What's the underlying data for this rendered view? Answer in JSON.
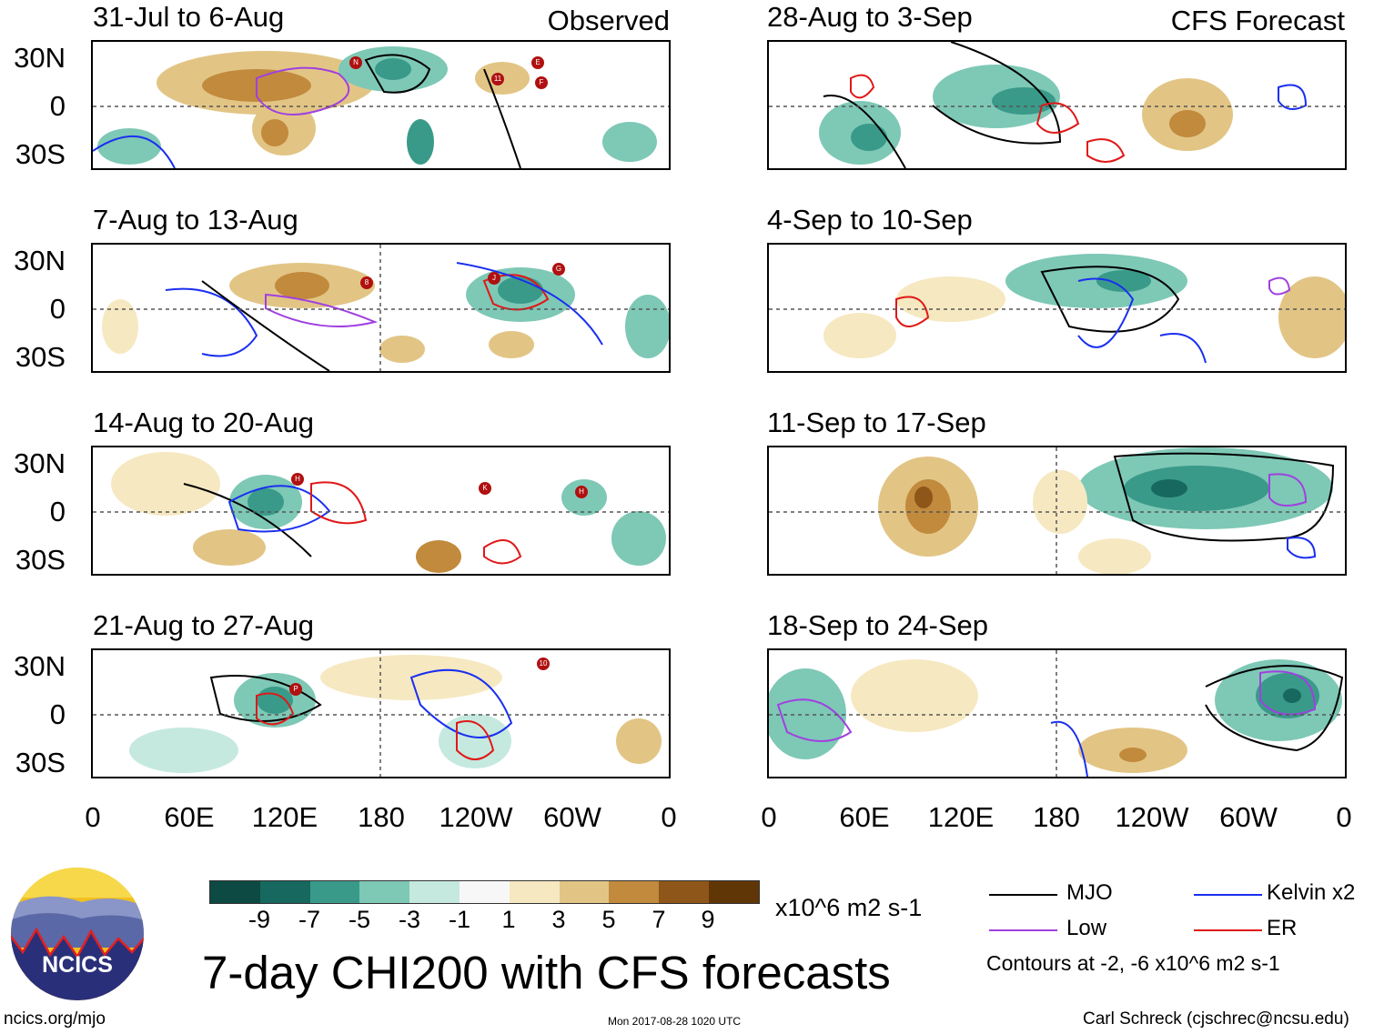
{
  "header": {
    "observed_label": "Observed",
    "forecast_label": "CFS Forecast"
  },
  "panels_left": [
    {
      "period": "31-Jul to 6-Aug"
    },
    {
      "period": "7-Aug to 13-Aug"
    },
    {
      "period": "14-Aug to 20-Aug"
    },
    {
      "period": "21-Aug to 27-Aug"
    }
  ],
  "panels_right": [
    {
      "period": "28-Aug to 3-Sep"
    },
    {
      "period": "4-Sep to 10-Sep"
    },
    {
      "period": "11-Sep to 17-Sep"
    },
    {
      "period": "18-Sep to 24-Sep"
    }
  ],
  "y_axis": {
    "n": "30N",
    "eq": "0",
    "s": "30S"
  },
  "x_axis": [
    "0",
    "60E",
    "120E",
    "180",
    "120W",
    "60W",
    "0"
  ],
  "colorbar": {
    "colors": [
      "#0d4a43",
      "#17685e",
      "#3a9a8a",
      "#7ec8b6",
      "#c5e9df",
      "#f7f7f7",
      "#f6e8c1",
      "#e2c585",
      "#c18a3c",
      "#8e5618",
      "#613607"
    ],
    "ticks": [
      "-9",
      "-7",
      "-5",
      "-3",
      "-1",
      "1",
      "3",
      "5",
      "7",
      "9"
    ],
    "units": "x10^6 m2 s-1"
  },
  "title": "7-day CHI200 with CFS forecasts",
  "legend": {
    "items": [
      {
        "label": "MJO",
        "color": "#000000"
      },
      {
        "label": "Kelvin x2",
        "color": "#1a2ff0"
      },
      {
        "label": "Low",
        "color": "#a040e0"
      },
      {
        "label": "ER",
        "color": "#e01818"
      }
    ],
    "contours_note": "Contours at -2, -6 x10^6 m2 s-1"
  },
  "logo_text": "NCICS",
  "footer": {
    "url": "ncics.org/mjo",
    "timestamp": "Mon 2017-08-28 1020 UTC",
    "author": "Carl Schreck (cjschrec@ncsu.edu)"
  },
  "storm_markers": {
    "p0": [
      "N",
      "E",
      "11",
      "F"
    ],
    "p1": [
      "8",
      "J",
      "G"
    ],
    "p2": [
      "H",
      "K",
      "H"
    ],
    "p3": [
      "P",
      "10"
    ]
  }
}
